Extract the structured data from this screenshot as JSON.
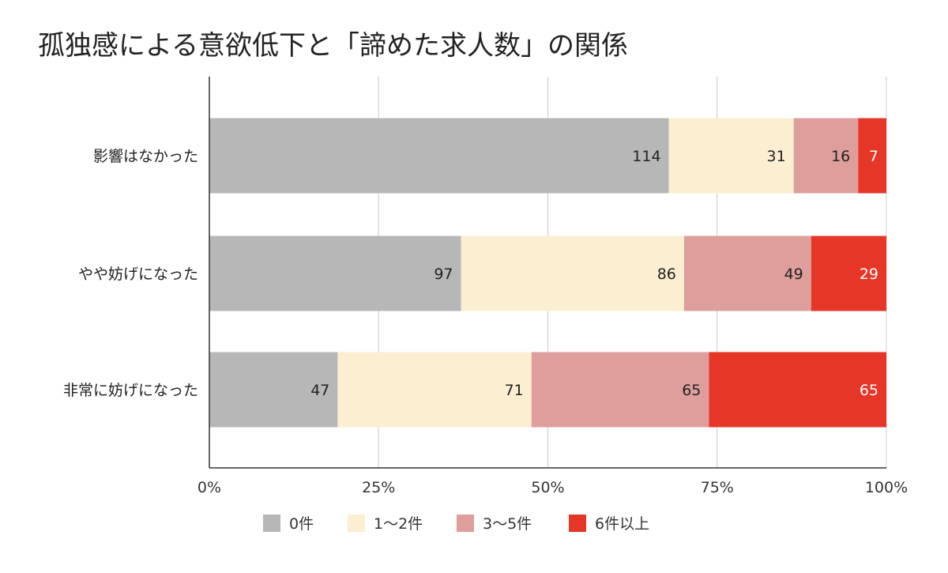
{
  "chart_data": {
    "type": "bar",
    "orientation": "horizontal",
    "stacking": "percent",
    "title": "孤独感による意欲低下と「諦めた求人数」の関係",
    "categories": [
      "影響はなかった",
      "やや妨げになった",
      "非常に妨げになった"
    ],
    "series": [
      {
        "name": "0件",
        "color": "#b7b7b7",
        "label_color": "#222222",
        "values": [
          114,
          97,
          47
        ]
      },
      {
        "name": "1〜2件",
        "color": "#fcefd1",
        "label_color": "#222222",
        "values": [
          31,
          86,
          71
        ]
      },
      {
        "name": "3〜5件",
        "color": "#dd9e9c",
        "label_color": "#222222",
        "values": [
          16,
          49,
          65
        ]
      },
      {
        "name": "6件以上",
        "color": "#e53627",
        "label_color": "#ffffff",
        "values": [
          7,
          29,
          65
        ]
      }
    ],
    "x_ticks": [
      "0%",
      "25%",
      "50%",
      "75%",
      "100%"
    ],
    "xlim": [
      0,
      100
    ],
    "grid": true,
    "legend_position": "bottom"
  }
}
